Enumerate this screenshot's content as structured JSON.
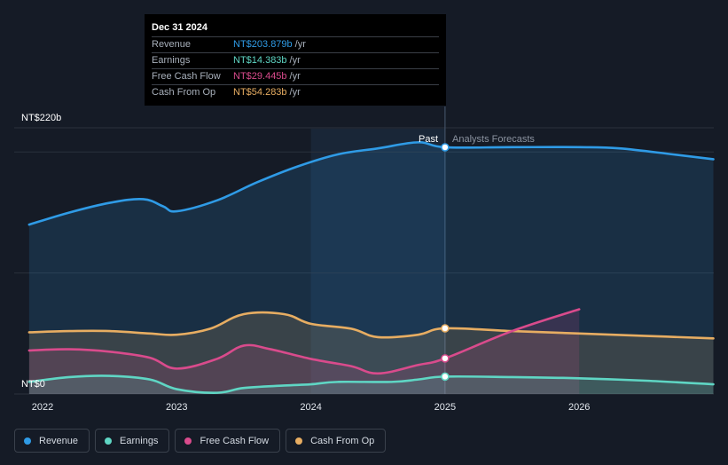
{
  "chart_data": {
    "type": "area",
    "y_axis": {
      "top_label": "NT$220b",
      "bottom_label": "NT$0",
      "ylim": [
        0,
        220
      ]
    },
    "x_axis": {
      "ticks": [
        "2022",
        "2023",
        "2024",
        "2025",
        "2026"
      ],
      "range": [
        2021.9,
        2027.0
      ]
    },
    "divider": {
      "x": 2025.0,
      "past_label": "Past",
      "forecast_label": "Analysts Forecasts"
    },
    "highlight_start": 2024.0,
    "series": [
      {
        "name": "Revenue",
        "color": "#2f9be6",
        "points": [
          [
            2021.9,
            140
          ],
          [
            2022.2,
            150
          ],
          [
            2022.5,
            158
          ],
          [
            2022.75,
            161
          ],
          [
            2022.9,
            155
          ],
          [
            2023.0,
            151
          ],
          [
            2023.3,
            160
          ],
          [
            2023.6,
            175
          ],
          [
            2023.9,
            188
          ],
          [
            2024.2,
            198
          ],
          [
            2024.5,
            203
          ],
          [
            2024.8,
            208
          ],
          [
            2025.0,
            203.879
          ],
          [
            2025.5,
            204
          ],
          [
            2026.0,
            204
          ],
          [
            2026.3,
            203
          ],
          [
            2026.7,
            198
          ],
          [
            2027.0,
            194
          ]
        ],
        "forecast_points": [
          [
            2025.0,
            203.879
          ],
          [
            2025.5,
            204
          ],
          [
            2026.0,
            204
          ],
          [
            2026.3,
            203
          ],
          [
            2026.7,
            198
          ],
          [
            2027.0,
            194
          ]
        ]
      },
      {
        "name": "Cash From Op",
        "color": "#e7ad62",
        "points": [
          [
            2021.9,
            51
          ],
          [
            2022.2,
            52
          ],
          [
            2022.5,
            52
          ],
          [
            2022.8,
            50
          ],
          [
            2023.0,
            49
          ],
          [
            2023.25,
            54
          ],
          [
            2023.5,
            66
          ],
          [
            2023.8,
            66
          ],
          [
            2024.0,
            58
          ],
          [
            2024.3,
            54
          ],
          [
            2024.5,
            47
          ],
          [
            2024.8,
            49
          ],
          [
            2025.0,
            54.283
          ],
          [
            2025.5,
            52
          ],
          [
            2026.0,
            50
          ],
          [
            2026.5,
            48
          ],
          [
            2027.0,
            46
          ]
        ],
        "forecast_points": [
          [
            2025.0,
            54.283
          ],
          [
            2025.5,
            52
          ],
          [
            2026.0,
            50
          ],
          [
            2026.5,
            48
          ],
          [
            2027.0,
            46
          ]
        ]
      },
      {
        "name": "Free Cash Flow",
        "color": "#d94b8c",
        "points": [
          [
            2021.9,
            36
          ],
          [
            2022.2,
            37
          ],
          [
            2022.5,
            35
          ],
          [
            2022.8,
            30
          ],
          [
            2023.0,
            21
          ],
          [
            2023.3,
            29
          ],
          [
            2023.5,
            40
          ],
          [
            2023.7,
            37
          ],
          [
            2024.0,
            29
          ],
          [
            2024.3,
            23
          ],
          [
            2024.5,
            17
          ],
          [
            2024.8,
            24
          ],
          [
            2025.0,
            29.445
          ],
          [
            2025.5,
            52
          ],
          [
            2026.0,
            70
          ]
        ],
        "forecast_points": [
          [
            2025.0,
            29.445
          ],
          [
            2025.5,
            52
          ],
          [
            2026.0,
            70
          ]
        ]
      },
      {
        "name": "Earnings",
        "color": "#5fd6c4",
        "points": [
          [
            2021.9,
            10
          ],
          [
            2022.2,
            14
          ],
          [
            2022.5,
            15
          ],
          [
            2022.8,
            12
          ],
          [
            2023.0,
            4
          ],
          [
            2023.3,
            1
          ],
          [
            2023.5,
            5
          ],
          [
            2023.8,
            7
          ],
          [
            2024.0,
            8
          ],
          [
            2024.2,
            10
          ],
          [
            2024.6,
            10
          ],
          [
            2024.8,
            12
          ],
          [
            2025.0,
            14.383
          ],
          [
            2025.5,
            14
          ],
          [
            2026.0,
            13
          ],
          [
            2026.5,
            11
          ],
          [
            2027.0,
            8
          ]
        ],
        "forecast_points": [
          [
            2025.0,
            14.383
          ],
          [
            2025.5,
            14
          ],
          [
            2026.0,
            13
          ],
          [
            2026.5,
            11
          ],
          [
            2027.0,
            8
          ]
        ]
      }
    ]
  },
  "tooltip": {
    "date": "Dec 31 2024",
    "unit": "/yr",
    "rows": [
      {
        "label": "Revenue",
        "value": "NT$203.879b",
        "color": "#2f9be6"
      },
      {
        "label": "Earnings",
        "value": "NT$14.383b",
        "color": "#5fd6c4"
      },
      {
        "label": "Free Cash Flow",
        "value": "NT$29.445b",
        "color": "#d94b8c"
      },
      {
        "label": "Cash From Op",
        "value": "NT$54.283b",
        "color": "#e7ad62"
      }
    ]
  },
  "legend": [
    {
      "label": "Revenue",
      "color": "#2f9be6"
    },
    {
      "label": "Earnings",
      "color": "#5fd6c4"
    },
    {
      "label": "Free Cash Flow",
      "color": "#d94b8c"
    },
    {
      "label": "Cash From Op",
      "color": "#e7ad62"
    }
  ]
}
